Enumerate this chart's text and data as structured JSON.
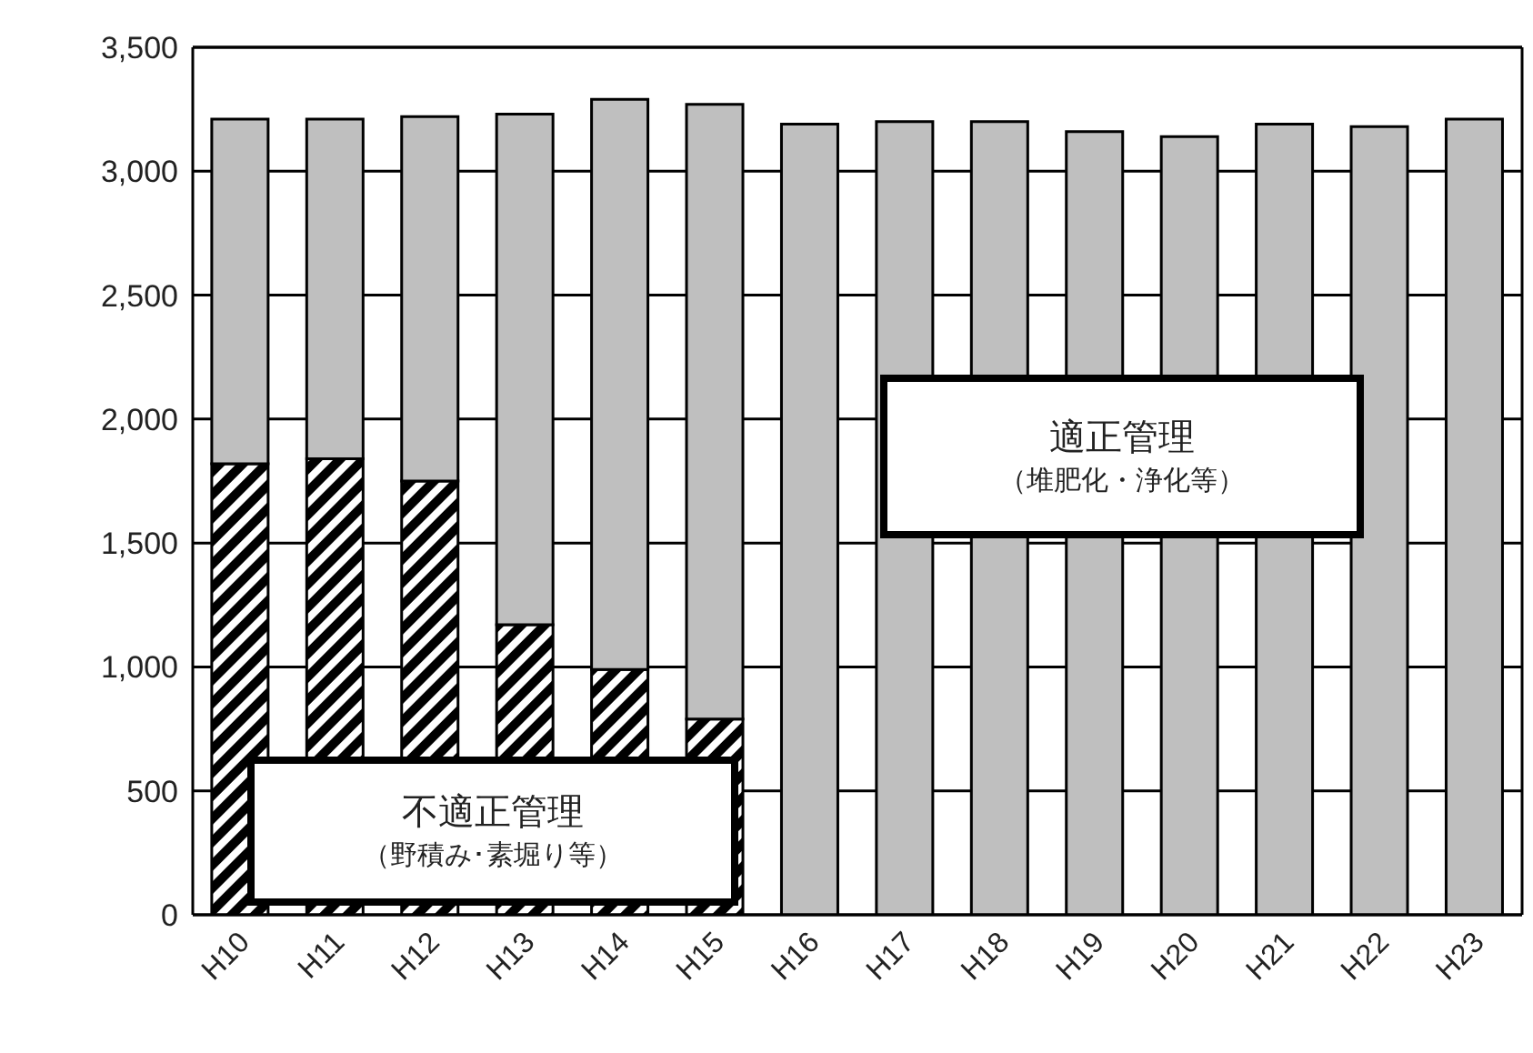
{
  "chart_data": {
    "type": "bar",
    "stacked": true,
    "categories": [
      "H10",
      "H11",
      "H12",
      "H13",
      "H14",
      "H15",
      "H16",
      "H17",
      "H18",
      "H19",
      "H20",
      "H21",
      "H22",
      "H23"
    ],
    "series": [
      {
        "name": "不適正管理（野積み･素堀り等）",
        "color": "#000000",
        "values": [
          1820,
          1840,
          1750,
          1170,
          990,
          790,
          0,
          0,
          0,
          0,
          0,
          0,
          0,
          0
        ]
      },
      {
        "name": "適正管理（堆肥化・浄化等）",
        "color": "#bfbfbf",
        "values": [
          1390,
          1370,
          1470,
          2060,
          2300,
          2480,
          3190,
          3200,
          3200,
          3160,
          3140,
          3190,
          3180,
          3210
        ]
      }
    ],
    "ylim": [
      0,
      3500
    ],
    "yticks": [
      0,
      500,
      {
        "value": 1000,
        "label": "1,000"
      },
      {
        "value": 1500,
        "label": "1,500"
      },
      {
        "value": 2000,
        "label": "2,000"
      },
      {
        "value": 2500,
        "label": "2,500"
      },
      {
        "value": 3000,
        "label": "3,000"
      },
      {
        "value": 3500,
        "label": "3,500"
      }
    ],
    "grid": "y",
    "legend": false
  }
}
